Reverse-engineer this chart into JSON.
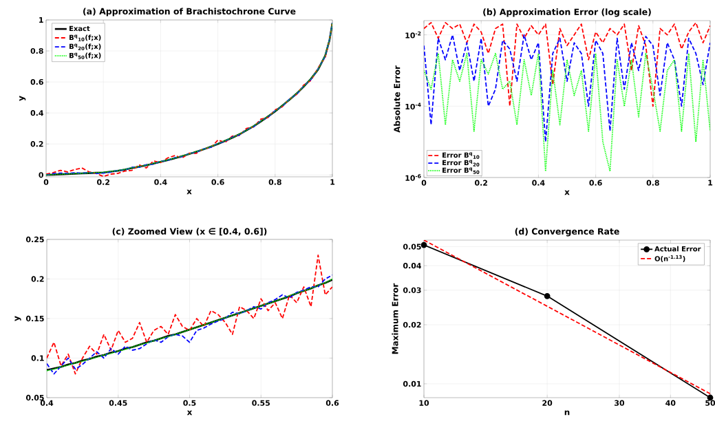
{
  "chart_data": [
    {
      "type": "line",
      "title": "(a) Approximation of Brachistochrone Curve",
      "xlabel": "x",
      "ylabel": "y",
      "x": [
        0,
        0.025,
        0.05,
        0.075,
        0.1,
        0.125,
        0.15,
        0.175,
        0.2,
        0.225,
        0.25,
        0.275,
        0.3,
        0.325,
        0.35,
        0.375,
        0.4,
        0.425,
        0.45,
        0.475,
        0.5,
        0.525,
        0.55,
        0.575,
        0.6,
        0.625,
        0.65,
        0.675,
        0.7,
        0.725,
        0.75,
        0.775,
        0.8,
        0.825,
        0.85,
        0.875,
        0.9,
        0.925,
        0.95,
        0.975,
        0.99,
        1
      ],
      "series": [
        {
          "name": "Exact",
          "color": "#000000",
          "line_style": "solid",
          "values": [
            0,
            0.002,
            0.004,
            0.006,
            0.008,
            0.01,
            0.012,
            0.014,
            0.016,
            0.021,
            0.027,
            0.035,
            0.045,
            0.053,
            0.062,
            0.073,
            0.085,
            0.096,
            0.108,
            0.121,
            0.135,
            0.15,
            0.165,
            0.182,
            0.2,
            0.22,
            0.24,
            0.262,
            0.288,
            0.315,
            0.345,
            0.377,
            0.41,
            0.447,
            0.485,
            0.525,
            0.57,
            0.62,
            0.68,
            0.77,
            0.87,
            0.98
          ]
        },
        {
          "name": "B$^{q}$$_{10}$(f;x)",
          "color": "#ff0000",
          "line_style": "dashed",
          "values": [
            0.005,
            0.015,
            0.03,
            0.02,
            0.035,
            0.045,
            0.02,
            0.01,
            -0.01,
            0.005,
            0.01,
            0.025,
            0.03,
            0.065,
            0.045,
            0.09,
            0.08,
            0.11,
            0.125,
            0.11,
            0.14,
            0.14,
            0.17,
            0.175,
            0.225,
            0.21,
            0.25,
            0.255,
            0.3,
            0.31,
            0.36,
            0.37,
            0.42,
            0.44,
            0.49,
            0.52,
            0.58,
            0.61,
            0.69,
            0.76,
            0.87,
            0.98
          ]
        },
        {
          "name": "B$^{q}$$_{20}$(f;x)",
          "color": "#0000ff",
          "line_style": "dashed",
          "values": [
            0,
            0.008,
            0.012,
            0.01,
            0.014,
            0.012,
            0.015,
            0.01,
            0.012,
            0.018,
            0.03,
            0.032,
            0.05,
            0.05,
            0.066,
            0.07,
            0.088,
            0.094,
            0.112,
            0.118,
            0.139,
            0.147,
            0.168,
            0.178,
            0.203,
            0.217,
            0.244,
            0.258,
            0.292,
            0.311,
            0.349,
            0.373,
            0.414,
            0.443,
            0.489,
            0.521,
            0.574,
            0.616,
            0.684,
            0.766,
            0.874,
            0.98
          ]
        },
        {
          "name": "B$^{q}$$_{50}$(f;x)",
          "color": "#00ff00",
          "line_style": "dotted",
          "values": [
            0,
            0.003,
            0.005,
            0.007,
            0.009,
            0.011,
            0.013,
            0.015,
            0.017,
            0.022,
            0.028,
            0.036,
            0.046,
            0.054,
            0.063,
            0.074,
            0.086,
            0.097,
            0.109,
            0.122,
            0.136,
            0.151,
            0.166,
            0.183,
            0.201,
            0.221,
            0.241,
            0.263,
            0.289,
            0.316,
            0.346,
            0.378,
            0.411,
            0.448,
            0.486,
            0.526,
            0.571,
            0.621,
            0.681,
            0.771,
            0.871,
            0.98
          ]
        }
      ],
      "xlim": [
        0,
        1
      ],
      "ylim": [
        -0.012,
        1
      ],
      "xticks": [
        0,
        0.2,
        0.4,
        0.6,
        0.8,
        1
      ],
      "yticks": [
        0,
        0.2,
        0.4,
        0.6,
        0.8,
        1
      ],
      "grid": true,
      "legend": "top left"
    },
    {
      "type": "line",
      "title": "(b) Approximation Error (log scale)",
      "xlabel": "x",
      "ylabel": "Absolute Error",
      "x": [
        0,
        0.025,
        0.05,
        0.075,
        0.1,
        0.125,
        0.15,
        0.175,
        0.2,
        0.225,
        0.25,
        0.275,
        0.3,
        0.325,
        0.35,
        0.375,
        0.4,
        0.425,
        0.45,
        0.475,
        0.5,
        0.525,
        0.55,
        0.575,
        0.6,
        0.625,
        0.65,
        0.675,
        0.7,
        0.725,
        0.75,
        0.775,
        0.8,
        0.825,
        0.85,
        0.875,
        0.9,
        0.925,
        0.95,
        0.975,
        1
      ],
      "series": [
        {
          "name": "Error B$^{q}$$_{10}$",
          "color": "#ff0000",
          "line_style": "dashed",
          "values": [
            0.015,
            0.022,
            0.008,
            0.022,
            0.015,
            0.02,
            0.006,
            0.02,
            0.012,
            0.003,
            0.015,
            0.02,
            0.0001,
            0.02,
            0.008,
            0.018,
            0.01,
            0.02,
            0.0004,
            0.015,
            0.005,
            0.01,
            0.02,
            0.002,
            0.012,
            0.006,
            0.015,
            0.01,
            0.02,
            0.001,
            0.018,
            0.005,
            0.0001,
            0.015,
            0.01,
            0.02,
            0.004,
            0.012,
            0.022,
            0.006,
            0.018
          ]
        },
        {
          "name": "Error B$^{q}$$_{20}$",
          "color": "#0000ff",
          "line_style": "dashed",
          "values": [
            0.005,
            3e-05,
            0.008,
            0.002,
            0.01,
            0.001,
            0.006,
            0.0005,
            0.008,
            0.0001,
            0.0003,
            0.007,
            0.004,
            0.0005,
            0.01,
            0.002,
            0.006,
            1e-05,
            0.003,
            0.008,
            0.0005,
            0.006,
            0.003,
            0.0001,
            0.007,
            0.003,
            2e-05,
            0.008,
            0.0003,
            0.006,
            0.001,
            0.009,
            0.005,
            0.0002,
            0.006,
            0.002,
            0.0001,
            0.008,
            0.003,
            0.0004,
            0.006
          ]
        },
        {
          "name": "Error B$^{q}$$_{50}$",
          "color": "#00ff00",
          "line_style": "dotted",
          "values": [
            0.001,
            0.0003,
            0.003,
            3e-05,
            0.002,
            0.0005,
            0.003,
            2e-05,
            0.002,
            0.0008,
            0.003,
            0.0003,
            0.0005,
            3e-05,
            0.002,
            0.0002,
            0.003,
            1.5e-06,
            0.001,
            3e-05,
            0.002,
            0.0002,
            0.001,
            2e-05,
            0.003,
            1e-05,
            1.5e-06,
            0.002,
            0.0001,
            0.002,
            5e-05,
            0.003,
            0.0003,
            2e-05,
            0.001,
            0.002,
            2e-05,
            0.003,
            1e-05,
            0.002,
            2e-05
          ]
        }
      ],
      "xlim": [
        0,
        1
      ],
      "ylim": [
        1e-06,
        0.025
      ],
      "xticks": [
        0,
        0.2,
        0.4,
        0.6,
        0.8,
        1
      ],
      "yticks": [
        {
          "value": 1e-06,
          "label": "10$^{-6}$"
        },
        {
          "value": 0.0001,
          "label": "10$^{-4}$"
        },
        {
          "value": 0.01,
          "label": "10$^{-2}$"
        }
      ],
      "log": "y",
      "grid": true,
      "legend": "bottom left"
    },
    {
      "type": "line",
      "title": "(c) Zoomed View (x ∈ [0.4, 0.6])",
      "xlabel": "x",
      "ylabel": "y",
      "x": [
        0.4,
        0.405,
        0.41,
        0.415,
        0.42,
        0.425,
        0.43,
        0.435,
        0.44,
        0.445,
        0.45,
        0.455,
        0.46,
        0.465,
        0.47,
        0.475,
        0.48,
        0.485,
        0.49,
        0.495,
        0.5,
        0.505,
        0.51,
        0.515,
        0.52,
        0.525,
        0.53,
        0.535,
        0.54,
        0.545,
        0.55,
        0.555,
        0.56,
        0.565,
        0.57,
        0.575,
        0.58,
        0.585,
        0.59,
        0.595,
        0.6
      ],
      "series": [
        {
          "color": "#000000",
          "line_style": "solid",
          "values": [
            0.085,
            0.087,
            0.089,
            0.092,
            0.094,
            0.097,
            0.099,
            0.102,
            0.104,
            0.107,
            0.109,
            0.112,
            0.114,
            0.117,
            0.12,
            0.122,
            0.125,
            0.128,
            0.13,
            0.133,
            0.136,
            0.139,
            0.142,
            0.145,
            0.148,
            0.151,
            0.154,
            0.157,
            0.16,
            0.163,
            0.166,
            0.169,
            0.172,
            0.175,
            0.178,
            0.182,
            0.185,
            0.188,
            0.192,
            0.195,
            0.199
          ]
        },
        {
          "color": "#ff0000",
          "line_style": "dashed",
          "values": [
            0.1,
            0.12,
            0.09,
            0.105,
            0.08,
            0.1,
            0.115,
            0.105,
            0.13,
            0.11,
            0.135,
            0.12,
            0.125,
            0.145,
            0.12,
            0.135,
            0.14,
            0.13,
            0.155,
            0.14,
            0.135,
            0.15,
            0.14,
            0.16,
            0.155,
            0.145,
            0.13,
            0.165,
            0.16,
            0.15,
            0.175,
            0.16,
            0.17,
            0.15,
            0.18,
            0.17,
            0.19,
            0.165,
            0.23,
            0.18,
            0.19
          ]
        },
        {
          "color": "#0000ff",
          "line_style": "dashed",
          "values": [
            0.093,
            0.08,
            0.09,
            0.1,
            0.086,
            0.092,
            0.1,
            0.108,
            0.1,
            0.112,
            0.105,
            0.115,
            0.11,
            0.112,
            0.118,
            0.123,
            0.12,
            0.127,
            0.13,
            0.128,
            0.12,
            0.135,
            0.138,
            0.143,
            0.147,
            0.15,
            0.158,
            0.156,
            0.16,
            0.165,
            0.162,
            0.17,
            0.174,
            0.18,
            0.176,
            0.183,
            0.186,
            0.19,
            0.19,
            0.2,
            0.205
          ]
        },
        {
          "color": "#00ff00",
          "line_style": "dotted",
          "values": [
            0.084,
            0.086,
            0.089,
            0.091,
            0.094,
            0.096,
            0.099,
            0.101,
            0.104,
            0.106,
            0.109,
            0.111,
            0.114,
            0.117,
            0.119,
            0.122,
            0.125,
            0.127,
            0.13,
            0.133,
            0.136,
            0.139,
            0.142,
            0.145,
            0.148,
            0.151,
            0.154,
            0.157,
            0.16,
            0.163,
            0.166,
            0.169,
            0.172,
            0.175,
            0.179,
            0.182,
            0.185,
            0.188,
            0.192,
            0.195,
            0.2
          ]
        }
      ],
      "xlim": [
        0.4,
        0.6
      ],
      "ylim": [
        0.05,
        0.25
      ],
      "xticks": [
        0.4,
        0.45,
        0.5,
        0.55,
        0.6
      ],
      "yticks": [
        0.05,
        0.1,
        0.15,
        0.2,
        0.25
      ],
      "grid": true
    },
    {
      "type": "line",
      "title": "(d) Convergence Rate",
      "xlabel": "n",
      "ylabel": "Maximum Error",
      "series": [
        {
          "name": "Actual Error",
          "color": "#000000",
          "line_style": "solid",
          "marker": "circle",
          "x": [
            10,
            20,
            50
          ],
          "values": [
            0.051,
            0.028,
            0.0085
          ]
        },
        {
          "name": "O(n$^{-1.13}$)",
          "color": "#ff0000",
          "line_style": "dashed",
          "x": [
            10,
            50
          ],
          "values": [
            0.054,
            0.0089
          ]
        }
      ],
      "xlim": [
        10,
        50
      ],
      "ylim": [
        0.0085,
        0.054
      ],
      "xticks": [
        10,
        20,
        30,
        40,
        50
      ],
      "yticks": [
        0.01,
        0.02,
        0.03,
        0.04,
        0.05
      ],
      "log": "xy",
      "grid": true,
      "legend": "top right"
    }
  ]
}
